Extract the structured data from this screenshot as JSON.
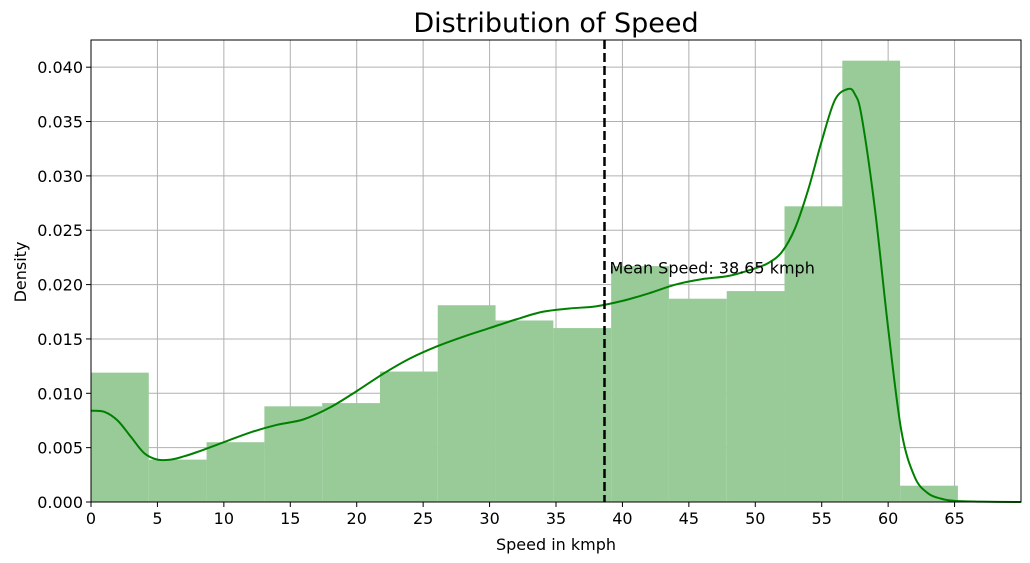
{
  "chart_data": {
    "type": "bar",
    "title": "Distribution of Speed",
    "xlabel": "Speed in kmph",
    "ylabel": "Density",
    "xlim": [
      0,
      70
    ],
    "ylim": [
      0,
      0.0425
    ],
    "grid": true,
    "x_ticks": [
      "0",
      "5",
      "10",
      "15",
      "20",
      "25",
      "30",
      "35",
      "40",
      "45",
      "50",
      "55",
      "60",
      "65"
    ],
    "x_tick_values": [
      0,
      5,
      10,
      15,
      20,
      25,
      30,
      35,
      40,
      45,
      50,
      55,
      60,
      65
    ],
    "y_ticks": [
      "0.000",
      "0.005",
      "0.010",
      "0.015",
      "0.020",
      "0.025",
      "0.030",
      "0.035",
      "0.040"
    ],
    "y_tick_values": [
      0,
      0.005,
      0.01,
      0.015,
      0.02,
      0.025,
      0.03,
      0.035,
      0.04
    ],
    "bar_color": "#98cb98",
    "kde_color": "#008000",
    "histogram": {
      "bin_edges": [
        0,
        4.35,
        8.7,
        13.05,
        17.4,
        21.75,
        26.1,
        30.45,
        34.8,
        39.15,
        43.5,
        47.85,
        52.2,
        56.55,
        60.9,
        65.25
      ],
      "density": [
        0.0119,
        0.0039,
        0.0055,
        0.0088,
        0.0091,
        0.012,
        0.0181,
        0.0167,
        0.016,
        0.0217,
        0.0187,
        0.0194,
        0.0272,
        0.0406,
        0.0015
      ]
    },
    "kde": {
      "x": [
        0,
        1,
        2,
        3,
        4,
        5,
        6,
        7,
        8,
        10,
        12,
        14,
        16,
        18,
        20,
        22,
        24,
        26,
        28,
        30,
        32,
        34,
        36,
        38,
        40,
        42,
        44,
        46,
        48,
        50,
        51,
        52,
        53,
        54,
        55,
        56,
        57,
        57.5,
        58,
        59,
        60,
        61,
        62,
        63,
        64,
        65,
        67,
        70
      ],
      "y": [
        0.0084,
        0.0083,
        0.0075,
        0.006,
        0.0045,
        0.0039,
        0.0039,
        0.0042,
        0.0046,
        0.0055,
        0.0064,
        0.0071,
        0.0076,
        0.0087,
        0.0102,
        0.0118,
        0.0132,
        0.0143,
        0.0152,
        0.016,
        0.0168,
        0.0175,
        0.0178,
        0.018,
        0.0185,
        0.0192,
        0.02,
        0.0205,
        0.0208,
        0.0215,
        0.022,
        0.023,
        0.0252,
        0.0288,
        0.0332,
        0.037,
        0.038,
        0.0375,
        0.0355,
        0.027,
        0.016,
        0.0065,
        0.0023,
        0.0008,
        0.0003,
        0.0001,
        3e-05,
        0.0
      ]
    },
    "mean_line": {
      "x": 38.65,
      "label": "Mean Speed: 38.65 kmph"
    }
  }
}
